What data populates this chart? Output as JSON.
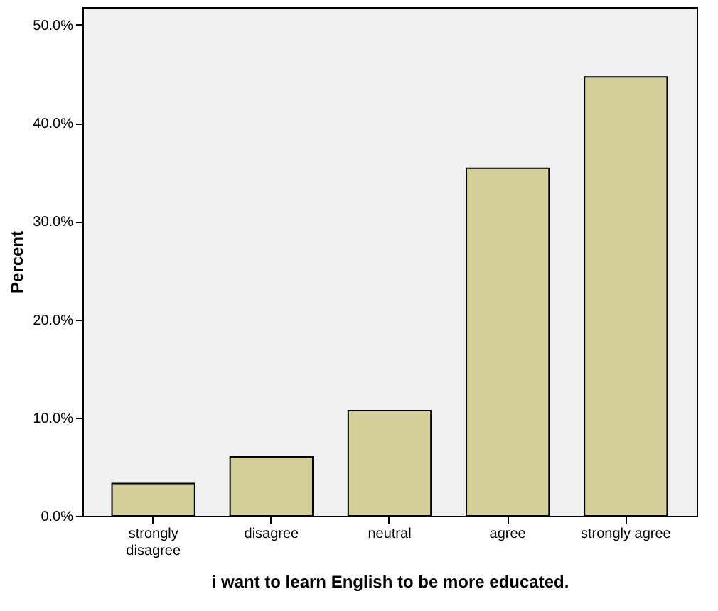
{
  "chart_data": {
    "type": "bar",
    "xlabel": "i want to learn English to be more educated.",
    "ylabel": "Percent",
    "categories": [
      "strongly disagree",
      "disagree",
      "neutral",
      "agree",
      "strongly agree"
    ],
    "values": [
      3.3,
      6.0,
      10.7,
      35.4,
      44.7
    ],
    "color": "#d3ce97",
    "ylim": [
      0,
      51.8
    ],
    "yticks": [
      {
        "value": 0,
        "label": "0.0%"
      },
      {
        "value": 10,
        "label": "10.0%"
      },
      {
        "value": 20,
        "label": "20.0%"
      },
      {
        "value": 30,
        "label": "30.0%"
      },
      {
        "value": 40,
        "label": "40.0%"
      },
      {
        "value": 50,
        "label": "50.0%"
      }
    ],
    "grid": false
  }
}
